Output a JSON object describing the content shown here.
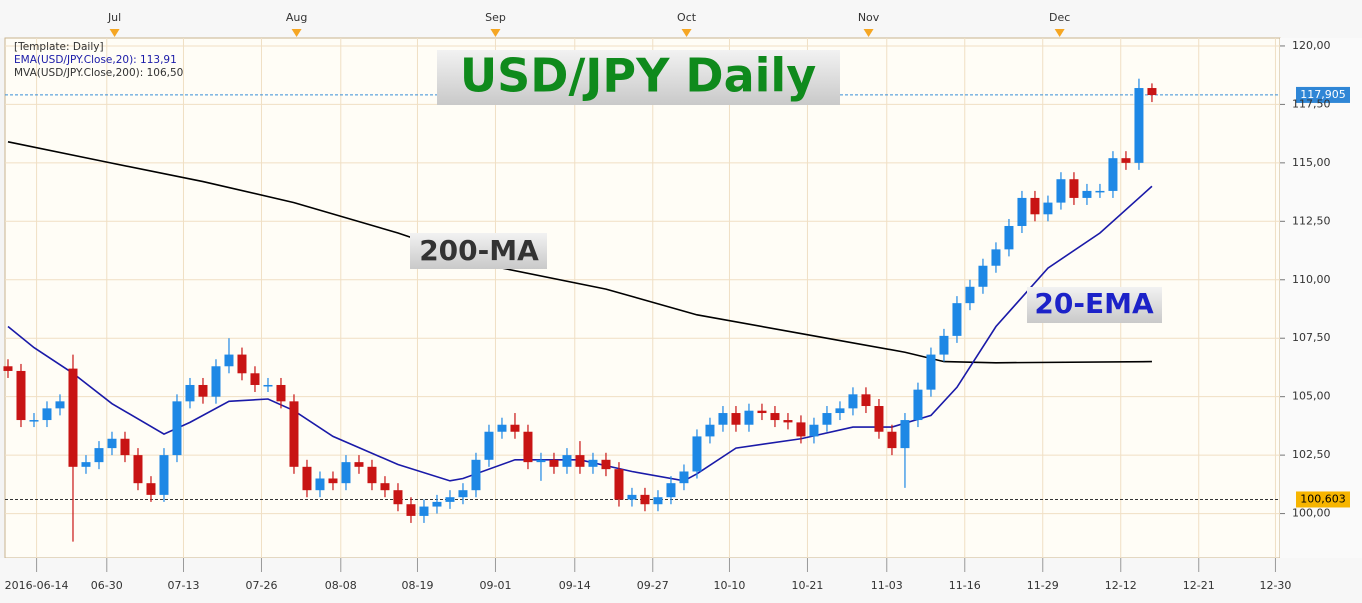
{
  "chart_data": {
    "type": "candlestick",
    "title": "USD/JPY Daily",
    "legend_text": [
      "[Template: Daily]",
      "EMA(USD/JPY.Close,20): 113,91",
      "MVA(USD/JPY.Close,200): 106,50"
    ],
    "annotations": [
      "200-MA",
      "20-EMA"
    ],
    "up_color": "#1e88e5",
    "down_color": "#c81414",
    "candles": {
      "open": [
        106.3,
        106.1,
        104.0,
        104.0,
        104.5,
        106.2,
        102.0,
        102.2,
        102.8,
        103.2,
        102.5,
        101.3,
        100.8,
        102.5,
        104.8,
        105.5,
        105.0,
        106.3,
        106.8,
        106.0,
        105.5,
        105.5,
        104.8,
        102.0,
        101.0,
        101.5,
        101.3,
        102.2,
        102.0,
        101.3,
        101.0,
        100.4,
        99.9,
        100.3,
        100.5,
        100.7,
        101.0,
        102.3,
        103.5,
        103.8,
        103.5,
        102.2,
        102.3,
        102.0,
        102.5,
        102.0,
        102.3,
        101.9,
        100.6,
        100.8,
        100.4,
        100.7,
        101.3,
        101.8,
        103.3,
        103.8,
        104.3,
        103.8,
        104.4,
        104.3,
        104.0,
        103.9,
        103.3,
        103.8,
        104.3,
        104.5,
        105.1,
        104.6,
        103.5,
        102.8,
        104.0,
        105.3,
        106.8,
        107.6,
        109.0,
        109.7,
        110.6,
        111.3,
        112.3,
        113.5,
        112.8,
        113.3,
        114.3,
        113.5,
        113.8,
        113.8,
        115.2,
        115.0,
        118.2
      ],
      "high": [
        106.6,
        106.4,
        104.3,
        104.8,
        105.1,
        106.8,
        102.5,
        103.1,
        103.5,
        103.5,
        102.8,
        101.6,
        102.8,
        105.1,
        105.8,
        105.8,
        106.6,
        107.5,
        107.1,
        106.3,
        105.8,
        105.8,
        105.1,
        102.3,
        101.8,
        101.8,
        102.5,
        102.5,
        102.3,
        101.6,
        101.3,
        100.7,
        100.6,
        100.8,
        101.0,
        101.3,
        102.6,
        103.8,
        104.1,
        104.3,
        103.8,
        102.6,
        102.6,
        102.8,
        103.1,
        102.6,
        102.6,
        102.2,
        101.1,
        101.1,
        101.0,
        101.6,
        102.1,
        103.6,
        104.1,
        104.6,
        104.6,
        104.7,
        104.7,
        104.6,
        104.3,
        104.2,
        104.1,
        104.6,
        104.8,
        105.4,
        105.4,
        104.9,
        103.8,
        104.3,
        105.6,
        107.1,
        107.9,
        109.3,
        110.0,
        110.9,
        111.6,
        112.6,
        113.8,
        113.8,
        113.6,
        114.6,
        114.6,
        114.1,
        114.1,
        115.5,
        115.5,
        118.6,
        118.4
      ],
      "low": [
        105.8,
        103.7,
        103.7,
        103.7,
        104.2,
        98.8,
        101.7,
        101.9,
        102.5,
        102.2,
        101.0,
        100.5,
        100.5,
        102.2,
        104.5,
        104.7,
        104.7,
        106.0,
        105.7,
        105.2,
        105.2,
        104.5,
        101.7,
        100.7,
        100.7,
        101.0,
        101.0,
        101.7,
        101.0,
        100.7,
        100.1,
        99.6,
        99.6,
        100.0,
        100.2,
        100.4,
        100.7,
        102.0,
        103.2,
        103.2,
        101.9,
        101.4,
        101.7,
        101.7,
        101.7,
        101.7,
        101.6,
        100.3,
        100.3,
        100.1,
        100.1,
        100.4,
        101.0,
        101.5,
        103.0,
        103.5,
        103.5,
        103.5,
        104.0,
        103.7,
        103.6,
        103.0,
        103.0,
        103.5,
        104.0,
        104.2,
        104.3,
        103.2,
        102.5,
        101.1,
        103.7,
        105.0,
        106.5,
        107.3,
        108.7,
        109.4,
        110.3,
        111.0,
        112.0,
        112.5,
        112.5,
        113.0,
        113.2,
        113.2,
        113.5,
        113.5,
        114.7,
        114.7,
        117.6
      ],
      "close": [
        106.1,
        104.0,
        104.0,
        104.5,
        104.8,
        102.0,
        102.2,
        102.8,
        103.2,
        102.5,
        101.3,
        100.8,
        102.5,
        104.8,
        105.5,
        105.0,
        106.3,
        106.8,
        106.0,
        105.5,
        105.5,
        104.8,
        102.0,
        101.0,
        101.5,
        101.3,
        102.2,
        102.0,
        101.3,
        101.0,
        100.4,
        99.9,
        100.3,
        100.5,
        100.7,
        101.0,
        102.3,
        103.5,
        103.8,
        103.5,
        102.2,
        102.3,
        102.0,
        102.5,
        102.0,
        102.3,
        101.9,
        100.6,
        100.8,
        100.4,
        100.7,
        101.3,
        101.8,
        103.3,
        103.8,
        104.3,
        103.8,
        104.4,
        104.3,
        104.0,
        103.9,
        103.3,
        103.8,
        104.3,
        104.5,
        105.1,
        104.6,
        103.5,
        102.8,
        104.0,
        105.3,
        106.8,
        107.6,
        109.0,
        109.7,
        110.6,
        111.3,
        112.3,
        113.5,
        112.8,
        113.3,
        114.3,
        113.5,
        113.8,
        113.8,
        115.2,
        115.0,
        118.2,
        117.9
      ]
    },
    "series": [
      {
        "color": "#000000",
        "x": [
          0,
          7,
          15,
          22,
          30,
          38,
          46,
          53,
          61,
          69,
          72,
          76,
          88
        ],
        "values": [
          115.9,
          115.1,
          114.2,
          113.3,
          112.0,
          110.5,
          109.6,
          108.5,
          107.7,
          106.9,
          106.5,
          106.45,
          106.5
        ]
      },
      {
        "color": "#1a1aa8",
        "x": [
          0,
          2,
          5,
          8,
          12,
          14,
          17,
          20,
          22,
          25,
          30,
          34,
          35,
          39,
          44,
          48,
          52,
          53,
          56,
          61,
          65,
          68,
          71,
          73,
          76,
          80,
          84,
          88
        ],
        "values": [
          108.0,
          107.1,
          106.0,
          104.7,
          103.4,
          103.9,
          104.8,
          104.9,
          104.4,
          103.3,
          102.1,
          101.4,
          101.5,
          102.3,
          102.3,
          101.8,
          101.4,
          101.7,
          102.8,
          103.2,
          103.7,
          103.7,
          104.2,
          105.4,
          108.0,
          110.5,
          112.0,
          114.0
        ]
      }
    ],
    "price_lines": [
      {
        "value": 117.905,
        "label": "117,905",
        "color": "#3a8fd8",
        "label_bg": "#2f86d6"
      },
      {
        "value": 100.603,
        "label": "100,603",
        "color": "#333333",
        "label_bg": "#f7b500"
      }
    ],
    "xlim": [
      -0.23,
      97.85
    ],
    "xticks": [
      {
        "value": 2.2,
        "label": "2016-06-14"
      },
      {
        "value": 7.6,
        "label": "06-30"
      },
      {
        "value": 13.5,
        "label": "07-13"
      },
      {
        "value": 19.5,
        "label": "07-26"
      },
      {
        "value": 25.6,
        "label": "08-08"
      },
      {
        "value": 31.5,
        "label": "08-19"
      },
      {
        "value": 37.5,
        "label": "09-01"
      },
      {
        "value": 43.6,
        "label": "09-14"
      },
      {
        "value": 49.6,
        "label": "09-27"
      },
      {
        "value": 55.5,
        "label": "10-10"
      },
      {
        "value": 61.5,
        "label": "10-21"
      },
      {
        "value": 67.6,
        "label": "11-03"
      },
      {
        "value": 73.6,
        "label": "11-16"
      },
      {
        "value": 79.6,
        "label": "11-29"
      },
      {
        "value": 85.6,
        "label": "12-12"
      },
      {
        "value": 91.6,
        "label": "12-21"
      },
      {
        "value": 97.5,
        "label": "12-30"
      }
    ],
    "month_ticks": [
      {
        "value": 8.2,
        "label": "Jul"
      },
      {
        "value": 22.2,
        "label": "Aug"
      },
      {
        "value": 37.5,
        "label": "Sep"
      },
      {
        "value": 52.2,
        "label": "Oct"
      },
      {
        "value": 66.2,
        "label": "Nov"
      },
      {
        "value": 80.9,
        "label": "Dec"
      }
    ],
    "ylim": [
      98.1,
      120.34
    ],
    "yticks": [
      {
        "value": 100,
        "label": "100,00"
      },
      {
        "value": 102.5,
        "label": "102,50"
      },
      {
        "value": 105,
        "label": "105,00"
      },
      {
        "value": 107.5,
        "label": "107,50"
      },
      {
        "value": 110,
        "label": "110,00"
      },
      {
        "value": 112.5,
        "label": "112,50"
      },
      {
        "value": 115,
        "label": "115,00"
      },
      {
        "value": 117.5,
        "label": "117,50"
      },
      {
        "value": 120,
        "label": "120,00"
      }
    ],
    "grid": true
  }
}
